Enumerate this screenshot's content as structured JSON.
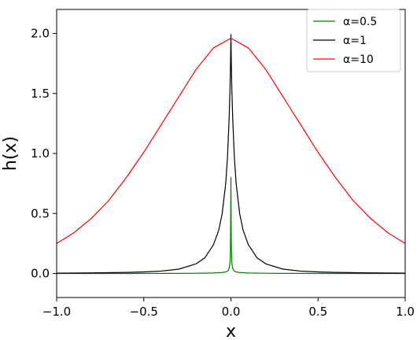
{
  "chart_data": {
    "type": "line",
    "xlabel": "x",
    "ylabel": "h(x)",
    "xlim": [
      -1.0,
      1.0
    ],
    "ylim": [
      -0.2,
      2.2
    ],
    "xticks": [
      -1.0,
      -0.5,
      0.0,
      0.5,
      1.0
    ],
    "xtick_labels": [
      "−1.0",
      "−0.5",
      "0.0",
      "0.5",
      "1.0"
    ],
    "yticks": [
      0.0,
      0.5,
      1.0,
      1.5,
      2.0
    ],
    "ytick_labels": [
      "0.0",
      "0.5",
      "1.0",
      "1.5",
      "2.0"
    ],
    "grid": false,
    "legend_position": "top-right",
    "series": [
      {
        "name": "α=0.5",
        "color": "#008000",
        "x": [
          -1.0,
          -0.8,
          -0.6,
          -0.4,
          -0.3,
          -0.2,
          -0.1,
          -0.05,
          -0.03,
          -0.02,
          -0.015,
          -0.01,
          -0.007,
          -0.005,
          -0.003,
          -0.002,
          0.0,
          0.002,
          0.003,
          0.005,
          0.007,
          0.01,
          0.015,
          0.02,
          0.03,
          0.05,
          0.1,
          0.2,
          0.3,
          0.4,
          0.6,
          0.8,
          1.0
        ],
        "y": [
          0.0,
          0.0,
          0.0,
          0.001,
          0.001,
          0.002,
          0.004,
          0.008,
          0.013,
          0.02,
          0.028,
          0.045,
          0.07,
          0.1,
          0.18,
          0.3,
          0.8,
          0.3,
          0.18,
          0.1,
          0.07,
          0.045,
          0.028,
          0.02,
          0.013,
          0.008,
          0.004,
          0.002,
          0.001,
          0.001,
          0.0,
          0.0,
          0.0
        ]
      },
      {
        "name": "α=1",
        "color": "#000000",
        "x": [
          -1.0,
          -0.8,
          -0.6,
          -0.5,
          -0.4,
          -0.3,
          -0.2,
          -0.15,
          -0.1,
          -0.07,
          -0.05,
          -0.03,
          -0.02,
          -0.01,
          -0.005,
          -0.002,
          0.0,
          0.002,
          0.005,
          0.01,
          0.02,
          0.03,
          0.05,
          0.07,
          0.1,
          0.15,
          0.2,
          0.3,
          0.4,
          0.5,
          0.6,
          0.8,
          1.0
        ],
        "y": [
          0.003,
          0.005,
          0.009,
          0.013,
          0.02,
          0.036,
          0.08,
          0.13,
          0.24,
          0.36,
          0.5,
          0.75,
          0.96,
          1.3,
          1.55,
          1.78,
          1.99,
          1.78,
          1.55,
          1.3,
          0.96,
          0.75,
          0.5,
          0.36,
          0.24,
          0.13,
          0.08,
          0.036,
          0.02,
          0.013,
          0.009,
          0.005,
          0.003
        ]
      },
      {
        "name": "α=10",
        "color": "#ff0000",
        "x": [
          -1.0,
          -0.9,
          -0.8,
          -0.7,
          -0.6,
          -0.5,
          -0.4,
          -0.3,
          -0.2,
          -0.1,
          0.0,
          0.1,
          0.2,
          0.3,
          0.4,
          0.5,
          0.6,
          0.7,
          0.8,
          0.9,
          1.0
        ],
        "y": [
          0.25,
          0.34,
          0.46,
          0.61,
          0.8,
          1.01,
          1.24,
          1.47,
          1.7,
          1.88,
          1.96,
          1.88,
          1.7,
          1.47,
          1.24,
          1.01,
          0.8,
          0.61,
          0.46,
          0.34,
          0.25
        ]
      }
    ]
  }
}
